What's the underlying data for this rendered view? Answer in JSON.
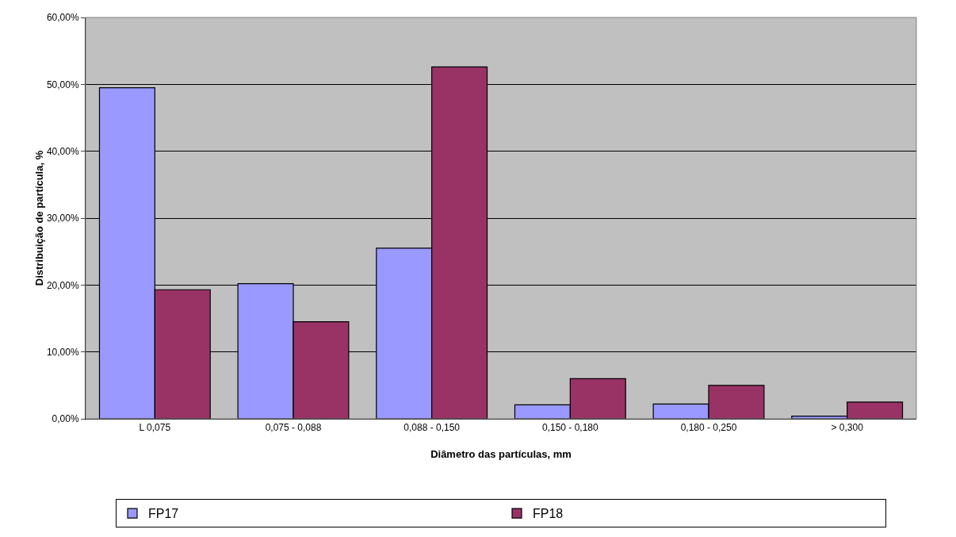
{
  "chart_data": {
    "type": "bar",
    "xlabel": "Diâmetro das partículas, mm",
    "ylabel": "Distribuição de partícula, %",
    "categories": [
      "L 0,075",
      "0,075 - 0,088",
      "0,088 - 0,150",
      "0,150 - 0,180",
      "0,180 - 0,250",
      "> 0,300"
    ],
    "series": [
      {
        "name": "FP17",
        "color": "#9999ff",
        "values": [
          49.5,
          20.2,
          25.5,
          2.1,
          2.2,
          0.4
        ]
      },
      {
        "name": "FP18",
        "color": "#993366",
        "values": [
          19.3,
          14.5,
          52.6,
          6.0,
          5.0,
          2.5
        ]
      }
    ],
    "ylim": [
      0,
      60
    ],
    "yticks": [
      {
        "value": 0,
        "label": "0,00%"
      },
      {
        "value": 10,
        "label": "10,00%"
      },
      {
        "value": 20,
        "label": "20,00%"
      },
      {
        "value": 30,
        "label": "30,00%"
      },
      {
        "value": 40,
        "label": "40,00%"
      },
      {
        "value": 50,
        "label": "50,00%"
      },
      {
        "value": 60,
        "label": "60,00%"
      }
    ],
    "grid": "y",
    "legend": "bottom"
  }
}
